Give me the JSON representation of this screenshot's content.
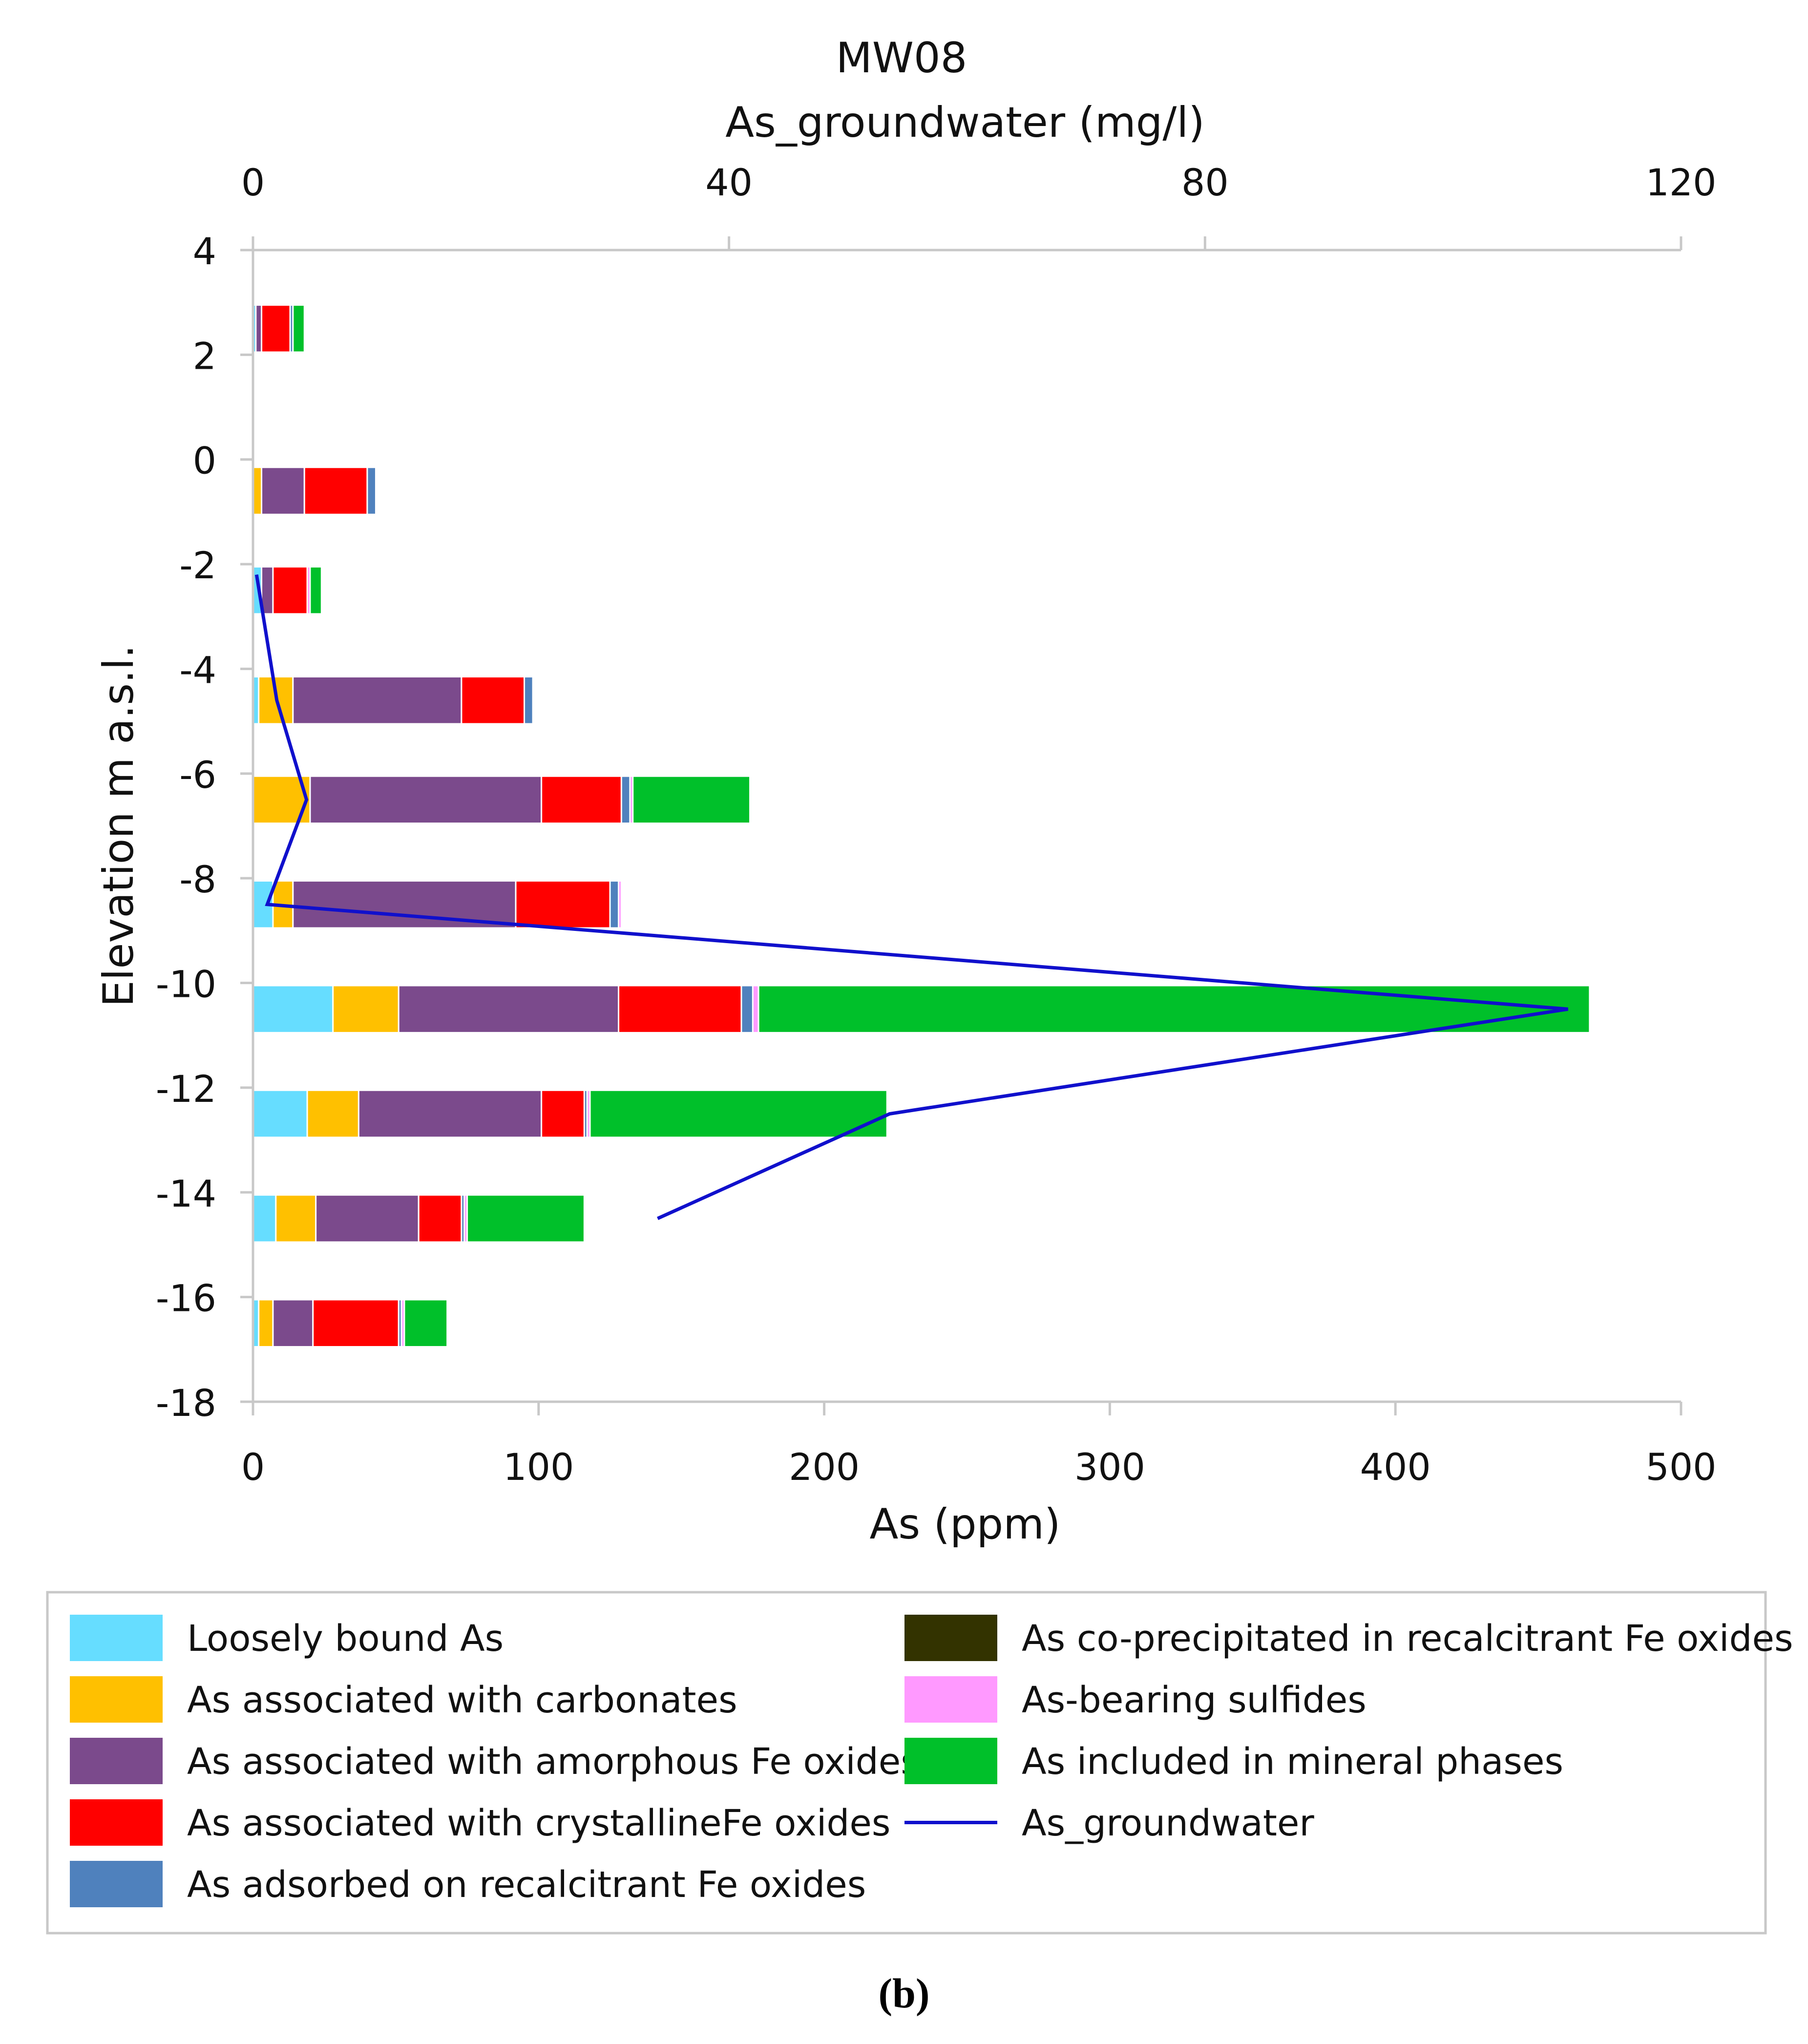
{
  "chart_data": {
    "type": "bar",
    "orientation": "horizontal",
    "stacked": true,
    "title": "MW08",
    "secondary_axis_label": "As_groundwater (mg/l)",
    "xlabel": "As (ppm)",
    "ylabel": "Elevation m a.s.l.",
    "xlim": [
      0,
      500
    ],
    "x_ticks": [
      "0",
      "100",
      "200",
      "300",
      "400",
      "500"
    ],
    "x2lim": [
      0,
      120
    ],
    "x2_ticks": [
      "0",
      "40",
      "80",
      "120"
    ],
    "ylim": [
      -18,
      4
    ],
    "y_ticks": [
      "4",
      "2",
      "0",
      "-2",
      "-4",
      "-6",
      "-8",
      "-10",
      "-12",
      "-14",
      "-16",
      "-18"
    ],
    "bar_half_height": 0.45,
    "elevations": [
      2.5,
      -0.6,
      -2.5,
      -4.6,
      -6.5,
      -8.5,
      -10.5,
      -12.5,
      -14.5,
      -16.5
    ],
    "series": [
      {
        "name": "Loosely bound As",
        "color": "#66DDFF",
        "values": [
          1,
          0,
          3,
          2,
          0,
          7,
          28,
          19,
          8,
          2
        ]
      },
      {
        "name": "As associated with carbonates",
        "color": "#FFC000",
        "values": [
          0,
          3,
          0,
          12,
          20,
          7,
          23,
          18,
          14,
          5
        ]
      },
      {
        "name": "As associated with amorphous Fe oxides",
        "color": "#7B4A8C",
        "values": [
          2,
          15,
          4,
          59,
          81,
          78,
          77,
          64,
          36,
          14
        ]
      },
      {
        "name": "As associated with crystallineFe oxides",
        "color": "#FF0000",
        "values": [
          10,
          22,
          12,
          22,
          28,
          33,
          43,
          15,
          15,
          30
        ]
      },
      {
        "name": "As adsorbed on recalcitrant Fe oxides",
        "color": "#4F81BD",
        "values": [
          1,
          3,
          0,
          3,
          3,
          3,
          4,
          1,
          1,
          1
        ]
      },
      {
        "name": "As co-precipitated in recalcitrant Fe oxides",
        "color": "#333300",
        "values": [
          0,
          0,
          0,
          0,
          0,
          0,
          0,
          0,
          0,
          0
        ]
      },
      {
        "name": "As-bearing sulfides",
        "color": "#FF99FF",
        "values": [
          0,
          0,
          1,
          0,
          1,
          1,
          2,
          1,
          1,
          1
        ]
      },
      {
        "name": "As included in mineral phases",
        "color": "#00C02A",
        "values": [
          4,
          0,
          4,
          0,
          41,
          0,
          291,
          104,
          41,
          15
        ]
      }
    ],
    "line_series": {
      "name": "As_groundwater",
      "color": "#1010CC",
      "axis": "secondary",
      "points": [
        {
          "x": 0.3,
          "y": -2.2
        },
        {
          "x": 2.0,
          "y": -4.6
        },
        {
          "x": 4.5,
          "y": -6.5
        },
        {
          "x": 1.2,
          "y": -8.5
        },
        {
          "x": 110.5,
          "y": -10.5
        },
        {
          "x": 53.5,
          "y": -12.5
        },
        {
          "x": 34.0,
          "y": -14.5
        }
      ]
    },
    "legend_position": "bottom"
  },
  "caption": "(b)"
}
